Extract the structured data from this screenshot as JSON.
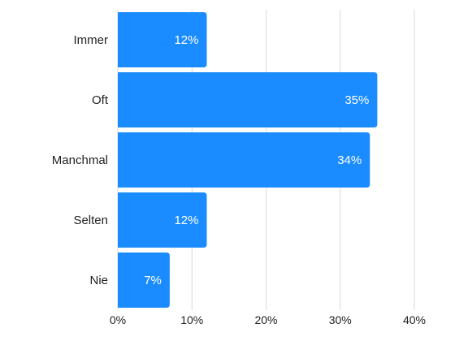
{
  "chart_data": {
    "type": "bar",
    "orientation": "horizontal",
    "categories": [
      "Immer",
      "Oft",
      "Manchmal",
      "Selten",
      "Nie"
    ],
    "values": [
      12,
      35,
      34,
      12,
      7
    ],
    "data_labels": [
      "12%",
      "35%",
      "34%",
      "12%",
      "7%"
    ],
    "xlim": [
      0,
      40
    ],
    "x_ticks": [
      0,
      10,
      20,
      30,
      40
    ],
    "x_tick_labels": [
      "0%",
      "10%",
      "20%",
      "30%",
      "40%"
    ],
    "grid": "vertical",
    "legend": "none",
    "bar_color": "#1a8cff",
    "title": "",
    "xlabel": "",
    "ylabel": ""
  }
}
